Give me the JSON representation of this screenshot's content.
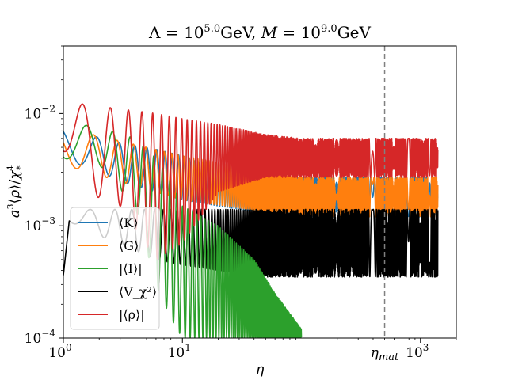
{
  "chart_data": {
    "type": "line",
    "title": "Λ = 10^5.0 GeV, M = 10^9.0 GeV",
    "xlabel": "η",
    "ylabel": "a³⟨ρ⟩/χ*⁴",
    "xscale": "log",
    "yscale": "log",
    "xlim": [
      1,
      2000
    ],
    "ylim": [
      0.0001,
      0.04
    ],
    "x_ticks": [
      {
        "value": 1,
        "label": "10^0"
      },
      {
        "value": 10,
        "label": "10^1"
      },
      {
        "value": 1000,
        "label": "10^3"
      }
    ],
    "y_ticks": [
      {
        "value": 0.0001,
        "label": "10^−4"
      },
      {
        "value": 0.001,
        "label": "10^−3"
      },
      {
        "value": 0.01,
        "label": "10^−2"
      }
    ],
    "vline": {
      "x": 500,
      "label": "η_mat",
      "style": "dashed",
      "color": "#808080"
    },
    "legend": {
      "placement": "lower-left"
    },
    "series": [
      {
        "name": "⟨K⟩",
        "color": "#1f77b4",
        "envelope": [
          [
            1,
            0.0035,
            0.0075
          ],
          [
            1.5,
            0.0035,
            0.0066
          ],
          [
            3,
            0.0025,
            0.0055
          ],
          [
            6,
            0.002,
            0.0048
          ],
          [
            10,
            0.0017,
            0.0042
          ],
          [
            20,
            0.0015,
            0.0032
          ],
          [
            50,
            0.0013,
            0.0028
          ],
          [
            100,
            0.0012,
            0.0027
          ],
          [
            500,
            0.0012,
            0.0027
          ],
          [
            1400,
            0.0012,
            0.0027
          ]
        ]
      },
      {
        "name": "⟨G⟩",
        "color": "#ff7f0e",
        "envelope": [
          [
            1,
            0.0035,
            0.0075
          ],
          [
            10,
            0.0017,
            0.0042
          ],
          [
            100,
            0.0012,
            0.0027
          ],
          [
            1400,
            0.0012,
            0.0027
          ]
        ]
      },
      {
        "name": "|⟨I⟩|",
        "color": "#2ca02c",
        "envelope": [
          [
            1,
            0.004,
            0.0085
          ],
          [
            2,
            0.0035,
            0.0075
          ],
          [
            4,
            0.0015,
            0.006
          ],
          [
            6,
            0.0003,
            0.004
          ],
          [
            8,
            0.00015,
            0.0025
          ],
          [
            10,
            0.0001,
            0.0015
          ],
          [
            20,
            0.0001,
            0.001
          ],
          [
            40,
            0.0001,
            0.0005
          ],
          [
            60,
            0.0001,
            0.00025
          ],
          [
            100,
            0.0001,
            0.00012
          ]
        ]
      },
      {
        "name": "⟨V_χ²⟩",
        "color": "#000000",
        "envelope": [
          [
            1,
            0.00035,
            0.0004
          ],
          [
            1.12,
            0.0011,
            0.0014
          ],
          [
            1.5,
            0.0009,
            0.0014
          ],
          [
            3,
            0.0007,
            0.0014
          ],
          [
            6,
            0.0005,
            0.0014
          ],
          [
            10,
            0.00045,
            0.0014
          ],
          [
            20,
            0.0004,
            0.0014
          ],
          [
            50,
            0.00035,
            0.0014
          ],
          [
            100,
            0.00035,
            0.0014
          ],
          [
            1400,
            0.00035,
            0.0014
          ]
        ]
      },
      {
        "name": "|⟨ρ⟩|",
        "color": "#d62728",
        "envelope": [
          [
            1,
            0.0045,
            0.014
          ],
          [
            1.5,
            0.002,
            0.012
          ],
          [
            3,
            0.0015,
            0.011
          ],
          [
            6,
            0.0005,
            0.01
          ],
          [
            10,
            0.0007,
            0.009
          ],
          [
            20,
            0.002,
            0.008
          ],
          [
            50,
            0.0027,
            0.0065
          ],
          [
            100,
            0.0027,
            0.006
          ],
          [
            500,
            0.0027,
            0.006
          ],
          [
            1400,
            0.0027,
            0.006
          ]
        ]
      }
    ]
  }
}
